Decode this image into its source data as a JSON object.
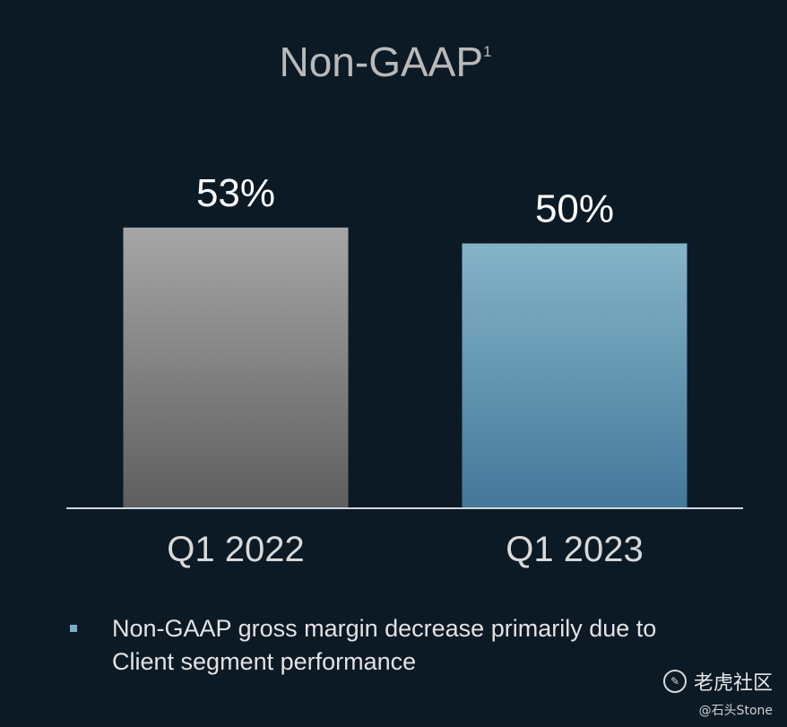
{
  "chart_data": {
    "type": "bar",
    "title": "Non-GAAP",
    "title_superscript": "1",
    "categories": [
      "Q1 2022",
      "Q1 2023"
    ],
    "values": [
      53,
      50
    ],
    "value_labels": [
      "53%",
      "50%"
    ],
    "colors": [
      "#8c8c8c",
      "#6aa0bb"
    ],
    "ylim": [
      0,
      55
    ],
    "xlabel": "",
    "ylabel": "",
    "grid": false,
    "unit": "%"
  },
  "footnote": {
    "text": "Non-GAAP gross margin decrease primarily due to Client segment performance"
  },
  "watermark": {
    "brand": "老虎社区",
    "user": "@石头Stone",
    "logo_icon": "tiger-community-logo-icon"
  }
}
